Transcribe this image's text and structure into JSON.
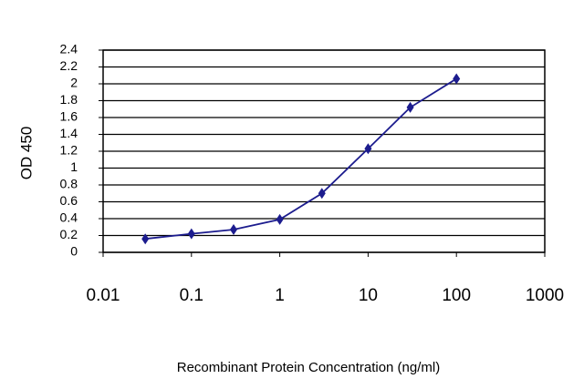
{
  "chart_data": {
    "type": "line",
    "y_label": "OD 450",
    "x_label": "Recombinant Protein Concentration (ng/ml)",
    "x": [
      0.03,
      0.1,
      0.3,
      1,
      3,
      10,
      30,
      100
    ],
    "series": [
      {
        "color": "#1c1c8e",
        "values": [
          0.16,
          0.22,
          0.27,
          0.39,
          0.7,
          1.23,
          1.72,
          2.06
        ]
      }
    ],
    "xscale": "log",
    "xlim": [
      0.01,
      1000
    ],
    "xticks": [
      0.01,
      0.1,
      1,
      10,
      100,
      1000
    ],
    "ylim": [
      0,
      2.4
    ],
    "yticks": [
      0,
      0.2,
      0.4,
      0.6,
      0.8,
      1,
      1.2,
      1.4,
      1.6,
      1.8,
      2,
      2.2,
      2.4
    ],
    "grid": true
  }
}
